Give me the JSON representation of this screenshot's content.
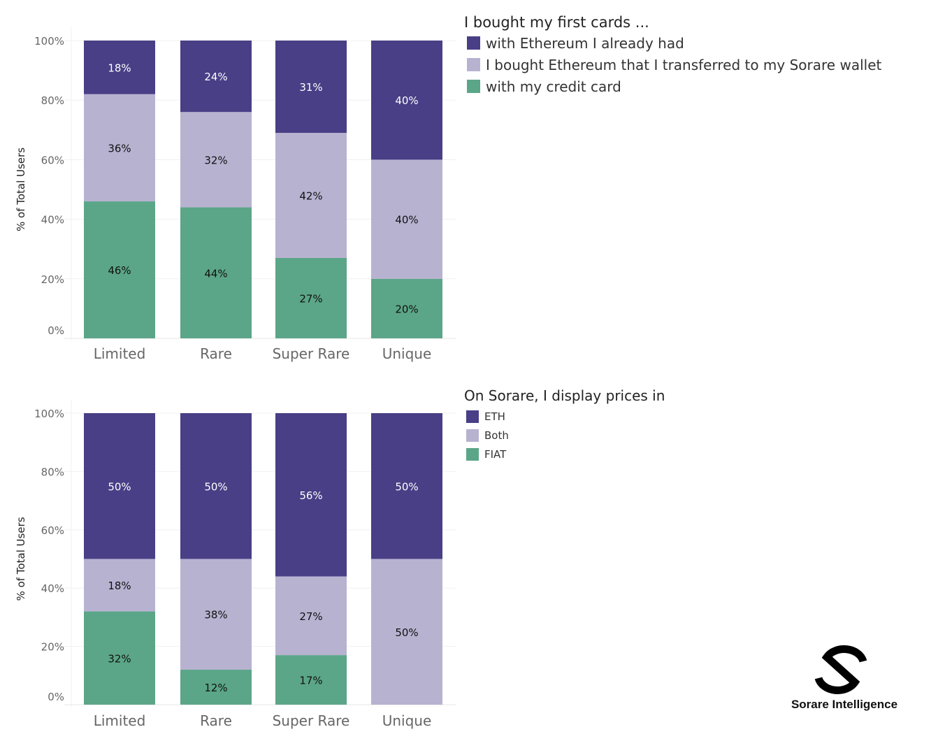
{
  "colors": {
    "dark": "#483f86",
    "light": "#b8b2d1",
    "green": "#5ba688"
  },
  "chart_data": [
    {
      "type": "bar",
      "stacked": true,
      "title": "I bought my first cards ...",
      "ylabel": "% of Total Users",
      "xlabel": "",
      "ylim": [
        0,
        100
      ],
      "yticks": [
        "0%",
        "20%",
        "40%",
        "60%",
        "80%",
        "100%"
      ],
      "categories": [
        "Limited",
        "Rare",
        "Super Rare",
        "Unique"
      ],
      "legend_position": "right",
      "series": [
        {
          "name": "with my credit card",
          "color": "#5ba688",
          "values": [
            46,
            44,
            27,
            20
          ],
          "labels": [
            "46%",
            "44%",
            "27%",
            "20%"
          ]
        },
        {
          "name": "I bought Ethereum that I transferred to my Sorare wallet",
          "color": "#b8b2d1",
          "values": [
            36,
            32,
            42,
            40
          ],
          "labels": [
            "36%",
            "32%",
            "42%",
            "40%"
          ]
        },
        {
          "name": "with Ethereum I already had",
          "color": "#483f86",
          "values": [
            18,
            24,
            31,
            40
          ],
          "labels": [
            "18%",
            "24%",
            "31%",
            "40%"
          ]
        }
      ],
      "legend_order": [
        2,
        1,
        0
      ]
    },
    {
      "type": "bar",
      "stacked": true,
      "title": "On Sorare, I display prices in",
      "ylabel": "% of Total Users",
      "xlabel": "",
      "ylim": [
        0,
        100
      ],
      "yticks": [
        "0%",
        "20%",
        "40%",
        "60%",
        "80%",
        "100%"
      ],
      "categories": [
        "Limited",
        "Rare",
        "Super Rare",
        "Unique"
      ],
      "legend_position": "right",
      "series": [
        {
          "name": "FIAT",
          "color": "#5ba688",
          "values": [
            32,
            12,
            17,
            0
          ],
          "labels": [
            "32%",
            "12%",
            "17%",
            ""
          ]
        },
        {
          "name": "Both",
          "color": "#b8b2d1",
          "values": [
            18,
            38,
            27,
            50
          ],
          "labels": [
            "18%",
            "38%",
            "27%",
            "50%"
          ]
        },
        {
          "name": "ETH",
          "color": "#483f86",
          "values": [
            50,
            50,
            56,
            50
          ],
          "labels": [
            "50%",
            "50%",
            "56%",
            "50%"
          ]
        }
      ],
      "legend_order": [
        2,
        1,
        0
      ]
    }
  ],
  "logo": {
    "text": "Sorare Intelligence"
  }
}
